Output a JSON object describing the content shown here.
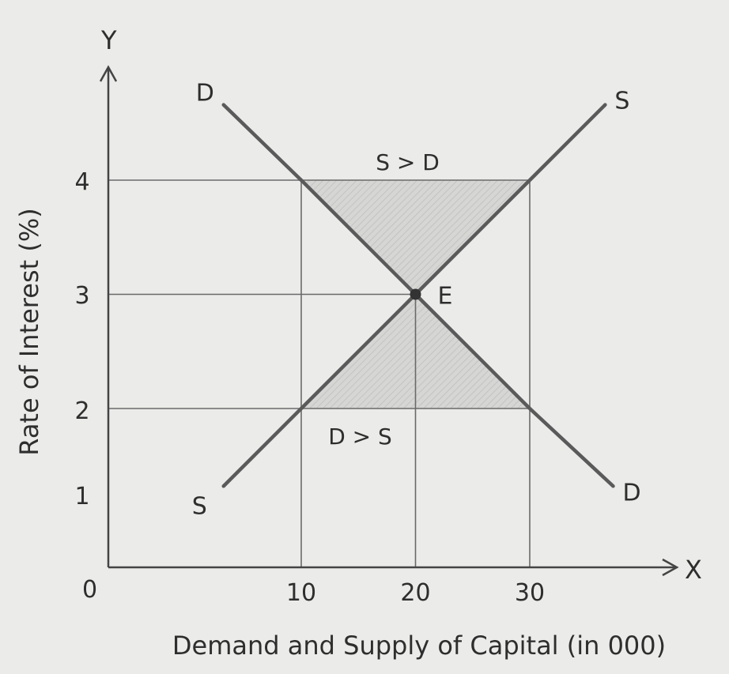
{
  "chart_data": {
    "type": "line",
    "title": "",
    "xlabel": "Demand and Supply of Capital (in 000)",
    "ylabel": "Rate of Interest (%)",
    "x_axis_letter": "X",
    "y_axis_letter": "Y",
    "origin_label": "0",
    "x_ticks": [
      10,
      20,
      30
    ],
    "y_ticks": [
      4,
      3,
      2,
      1
    ],
    "x_tick_labels": [
      "10",
      "20",
      "30"
    ],
    "y_tick_labels": [
      "4",
      "3",
      "2",
      "1"
    ],
    "grid": "guide lines at x = 10, 20, 30 and y = 2, 3, 4",
    "series": [
      {
        "name": "D",
        "start_label": "D",
        "end_label": "D",
        "points": [
          [
            3.2,
            4.66
          ],
          [
            10,
            4
          ],
          [
            20,
            3
          ],
          [
            30,
            2
          ],
          [
            37.3,
            1.32
          ]
        ]
      },
      {
        "name": "S",
        "start_label": "S",
        "end_label": "S",
        "points": [
          [
            3.2,
            1.32
          ],
          [
            10,
            2
          ],
          [
            20,
            3
          ],
          [
            30,
            4
          ],
          [
            36.6,
            4.66
          ]
        ]
      }
    ],
    "equilibrium": {
      "label": "E",
      "x": 20,
      "y": 3
    },
    "regions": [
      {
        "label": "S > D",
        "polygon": [
          [
            10,
            4
          ],
          [
            30,
            4
          ],
          [
            20,
            3
          ]
        ],
        "shading": "hatched grey"
      },
      {
        "label": "D > S",
        "polygon": [
          [
            10,
            2
          ],
          [
            30,
            2
          ],
          [
            20,
            3
          ]
        ],
        "shading": "hatched grey"
      }
    ],
    "colors": {
      "line": "#5a5a5a",
      "grid": "#6a6a6a",
      "shade": "#cfcfcd",
      "background": "#ebebe9"
    }
  }
}
